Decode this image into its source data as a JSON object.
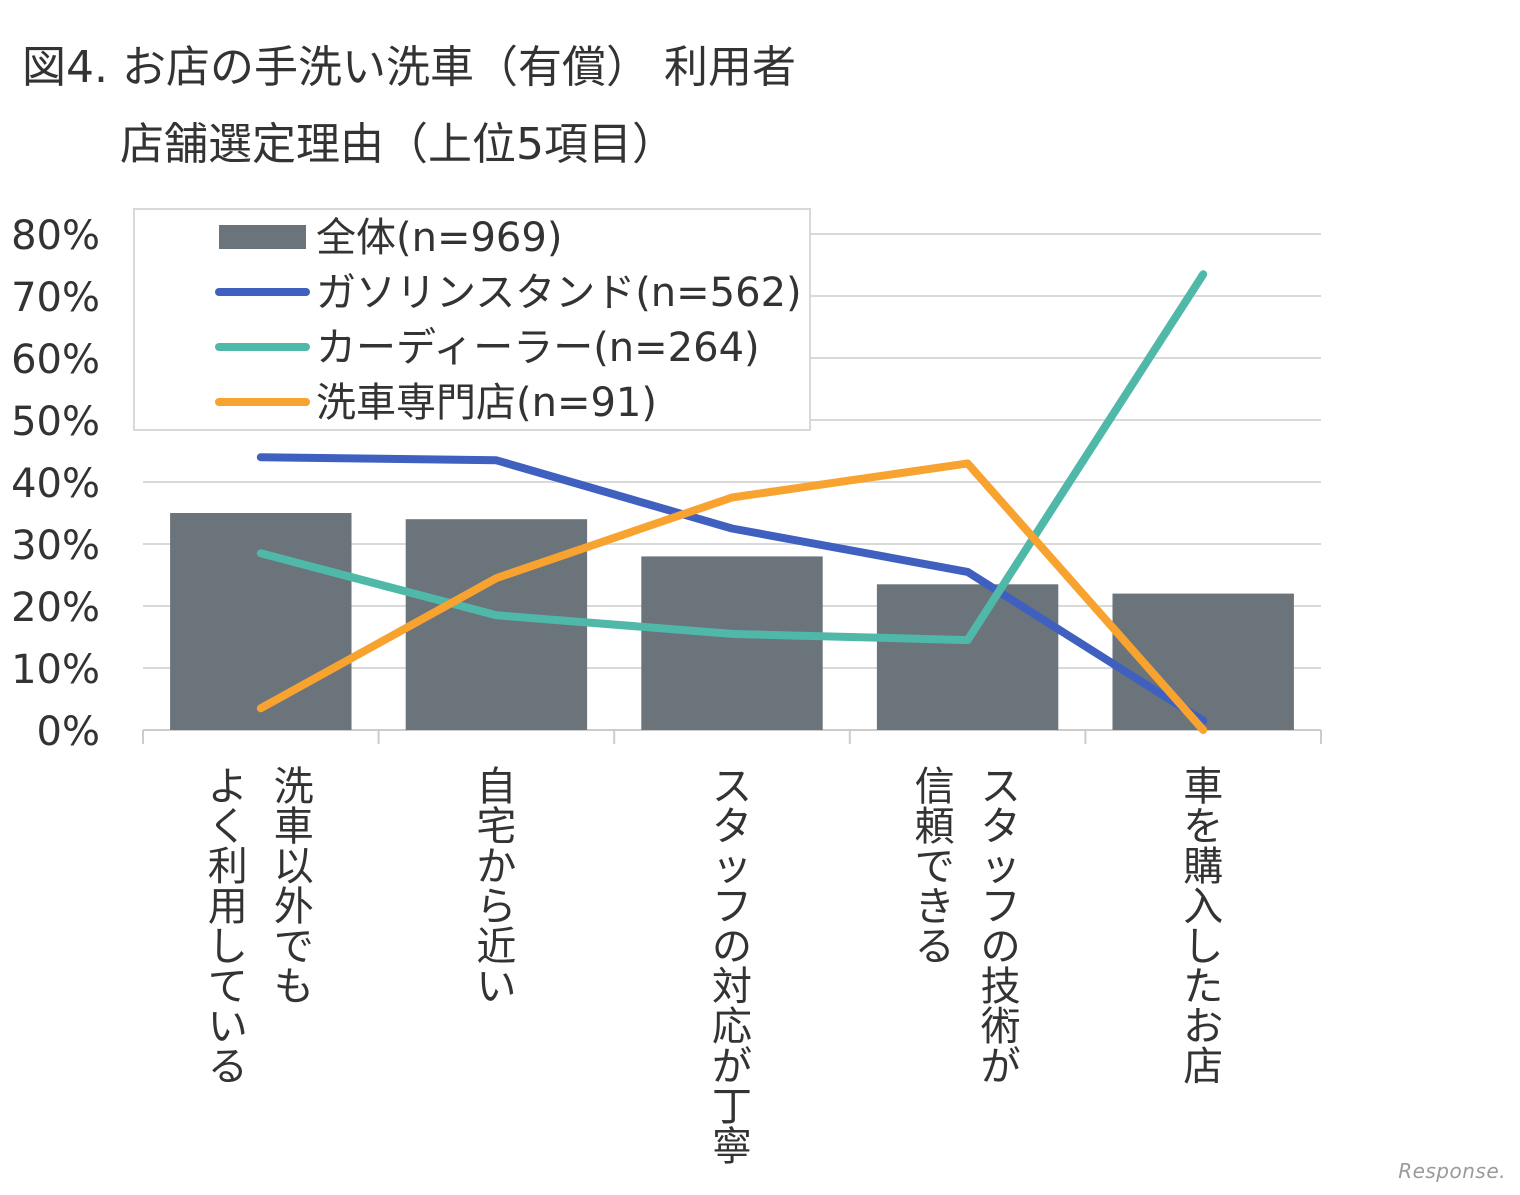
{
  "title": {
    "line1": "図4. お店の手洗い洗車（有償） 利用者",
    "line2": "店舗選定理由（上位5項目）"
  },
  "watermark": "Response.",
  "chart_data": {
    "type": "bar",
    "categories": [
      "洗車以外でもよく利用している",
      "自宅から近い",
      "スタッフの対応が丁寧",
      "スタッフの技術が信頼できる",
      "車を購入したお店"
    ],
    "category_lines": [
      [
        "洗車以外でも",
        "よく利用している"
      ],
      [
        "自宅から近い"
      ],
      [
        "スタッフの対応が丁寧"
      ],
      [
        "スタッフの技術が",
        "信頼できる"
      ],
      [
        "車を購入したお店"
      ]
    ],
    "ylim": [
      0,
      80
    ],
    "yticks": [
      "0%",
      "10%",
      "20%",
      "30%",
      "40%",
      "50%",
      "60%",
      "70%",
      "80%"
    ],
    "grid": true,
    "legend_position": "top-left",
    "series": [
      {
        "name": "全体(n=969)",
        "type": "bar",
        "color": "#6b747a",
        "values": [
          35,
          34,
          28,
          23.5,
          22
        ]
      },
      {
        "name": "ガソリンスタンド(n=562)",
        "type": "line",
        "color": "#4060c0",
        "values": [
          44,
          43.5,
          32.5,
          25.5,
          1.5
        ]
      },
      {
        "name": "カーディーラー(n=264)",
        "type": "line",
        "color": "#50b8a8",
        "values": [
          28.5,
          18.5,
          15.5,
          14.5,
          73.5
        ]
      },
      {
        "name": "洗車専門店(n=91)",
        "type": "line",
        "color": "#f8a230",
        "values": [
          3.5,
          24.5,
          37.5,
          43,
          0
        ]
      }
    ]
  }
}
